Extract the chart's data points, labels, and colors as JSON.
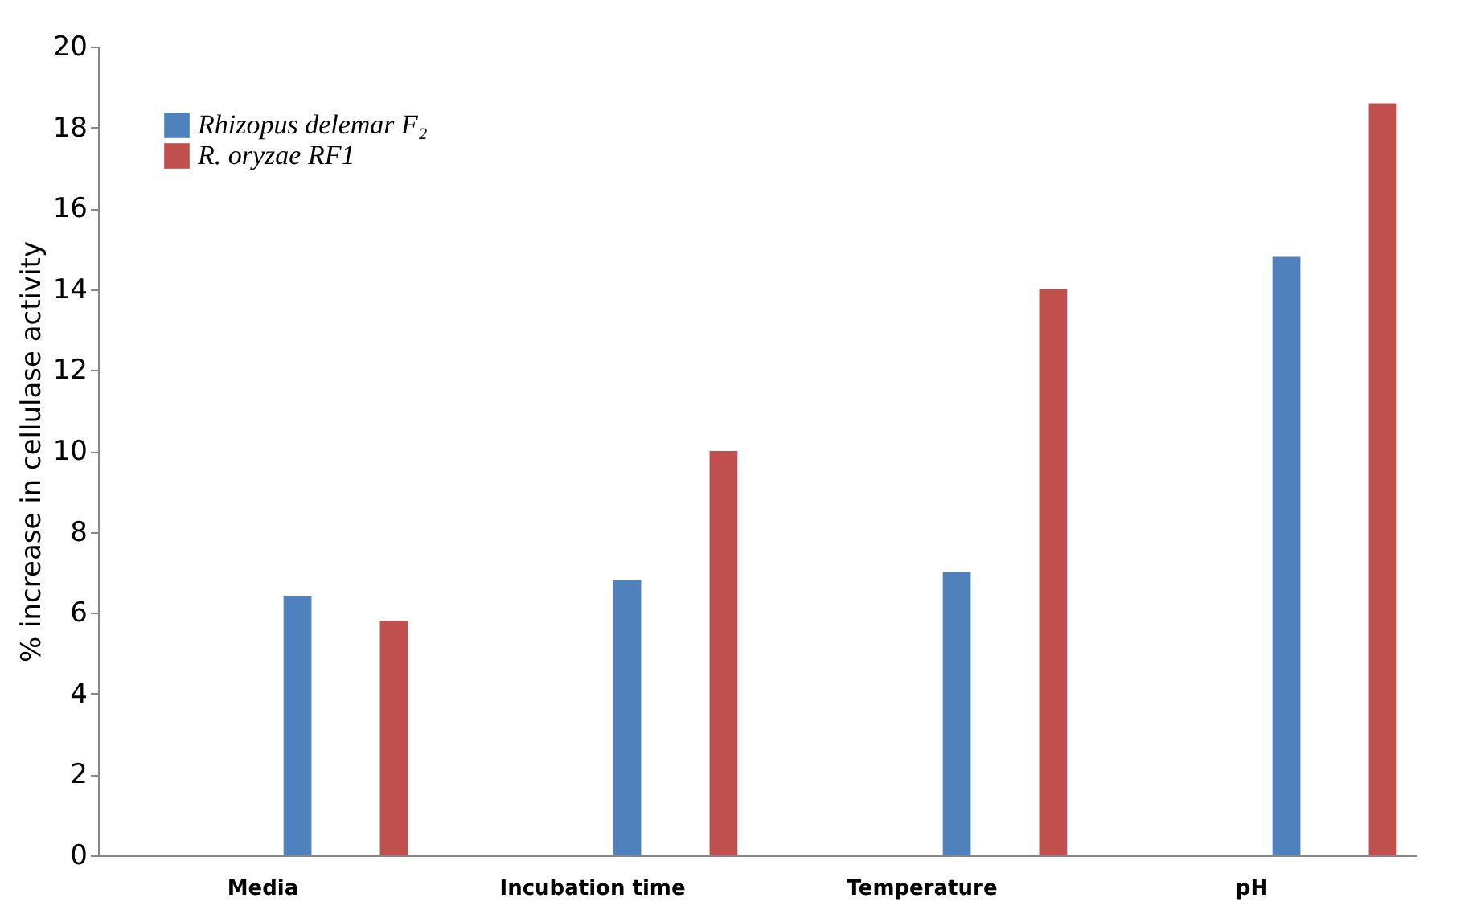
{
  "chart_data": {
    "type": "bar",
    "ylabel": "% increase in cellulase activity",
    "categories": [
      "Media",
      "Incubation time",
      "Temperature",
      "pH"
    ],
    "series": [
      {
        "name": "Rhizopus delemar F₂",
        "color": "#4f81bd",
        "values": [
          6.4,
          6.8,
          7.0,
          14.8
        ]
      },
      {
        "name": "R. oryzae RF1",
        "color": "#c0504d",
        "values": [
          5.8,
          10.0,
          14.0,
          18.6
        ]
      }
    ],
    "ylim": [
      0,
      20
    ],
    "yticks": [
      0,
      2,
      4,
      6,
      8,
      10,
      12,
      14,
      16,
      18,
      20
    ],
    "grid": false,
    "legend": "top left"
  }
}
